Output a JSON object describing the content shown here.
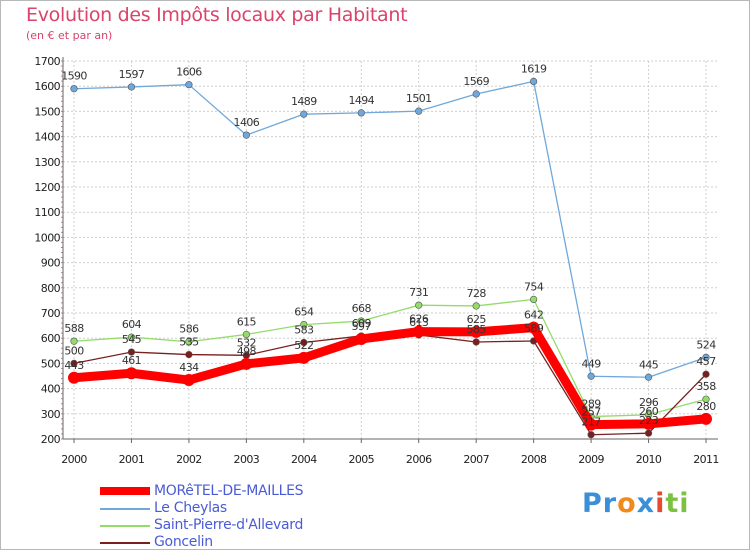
{
  "title": "Evolution des Impôts locaux par Habitant",
  "subtitle": "(en € et par an)",
  "logo": {
    "parts": [
      {
        "text": "Pr",
        "color": "#3a8fd6"
      },
      {
        "text": "o",
        "color": "#f08a1c"
      },
      {
        "text": "x",
        "color": "#3a8fd6"
      },
      {
        "text": "i",
        "color": "#e84a30"
      },
      {
        "text": "ti",
        "color": "#7cc242"
      }
    ]
  },
  "chart_data": {
    "type": "line",
    "title": "Evolution des Impôts locaux par Habitant",
    "subtitle": "(en € et par an)",
    "xlabel": "",
    "ylabel": "",
    "ylim": [
      200,
      1700
    ],
    "yticks": [
      200,
      300,
      400,
      500,
      600,
      700,
      800,
      900,
      1000,
      1100,
      1200,
      1300,
      1400,
      1500,
      1600,
      1700
    ],
    "grid": true,
    "legend_position": "bottom-left",
    "categories": [
      "2000",
      "2001",
      "2002",
      "2003",
      "2004",
      "2005",
      "2006",
      "2007",
      "2008",
      "2009",
      "2010",
      "2011"
    ],
    "series": [
      {
        "name": "MORêTEL-DE-MAILLES",
        "color": "#ff0000",
        "values": [
          443,
          461,
          434,
          498,
          522,
          597,
          626,
          625,
          642,
          257,
          260,
          280
        ],
        "labels": [
          "443",
          "461",
          "434",
          "498",
          "522",
          "597",
          "626",
          "625",
          "642",
          "257",
          "260",
          "280"
        ]
      },
      {
        "name": "Le Cheylas",
        "color": "#6fa8dc",
        "values": [
          1590,
          1597,
          1606,
          1406,
          1489,
          1494,
          1501,
          1569,
          1619,
          449,
          445,
          524
        ],
        "labels": [
          "1590",
          "1597",
          "1606",
          "1406",
          "1489",
          "1494",
          "1501",
          "1569",
          "1619",
          "449",
          "445",
          "524"
        ]
      },
      {
        "name": "Saint-Pierre-d'Allevard",
        "color": "#93dc6a",
        "values": [
          588,
          604,
          586,
          615,
          654,
          668,
          731,
          728,
          754,
          289,
          296,
          358
        ],
        "labels": [
          "588",
          "604",
          "586",
          "615",
          "654",
          "668",
          "731",
          "728",
          "754",
          "289",
          "296",
          "358"
        ]
      },
      {
        "name": "Goncelin",
        "color": "#7a1f1f",
        "values": [
          500,
          545,
          535,
          532,
          583,
          609,
          613,
          585,
          589,
          217,
          223,
          457
        ],
        "labels": [
          "500",
          "545",
          "535",
          "532",
          "583",
          "609",
          "613",
          "585",
          "589",
          "217",
          "223",
          "457"
        ]
      }
    ]
  }
}
